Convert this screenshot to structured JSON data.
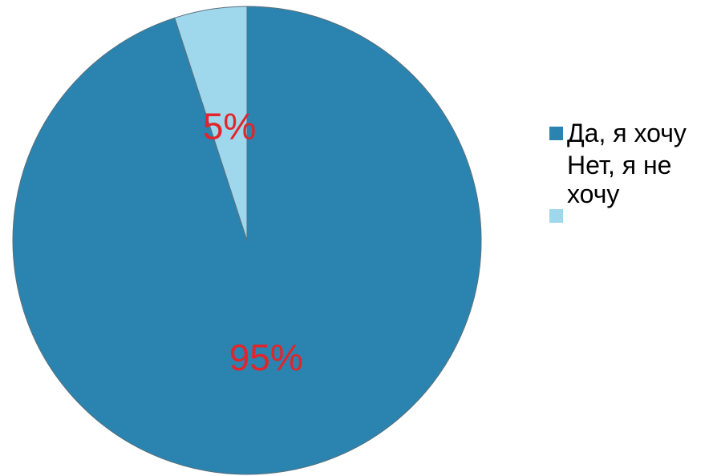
{
  "chart_data": {
    "type": "pie",
    "title": "",
    "slices": [
      {
        "label": "Да, я хочу",
        "value": 95,
        "data_label": "95%",
        "color": "#2a84af"
      },
      {
        "label": "Нет, я не хочу",
        "value": 5,
        "data_label": "5%",
        "color": "#9fd8ec"
      }
    ],
    "start_angle_deg": 0,
    "direction": "clockwise",
    "data_label_color": "#e3242b",
    "slice_border_color": "#5a6f7c",
    "legend_position": "right"
  },
  "legend": {
    "items": [
      {
        "label": "Да, я хочу",
        "color": "#2a84af"
      },
      {
        "label": "Нет, я не хочу",
        "color": "#9fd8ec"
      }
    ]
  }
}
